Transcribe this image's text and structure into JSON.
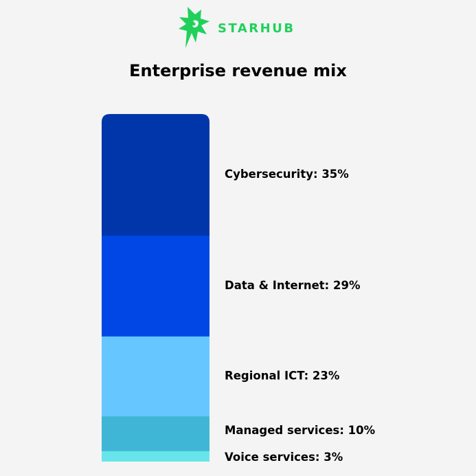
{
  "brand": {
    "name": "STARHUB",
    "logo_icon": "starhub-star-logo",
    "color": "#1fd15a"
  },
  "chart_data": {
    "type": "bar",
    "stacked": true,
    "title": "Enterprise revenue mix",
    "unit": "%",
    "categories": [
      "Cybersecurity",
      "Data & Internet",
      "Regional ICT",
      "Managed services",
      "Voice services"
    ],
    "values": [
      35,
      29,
      23,
      10,
      3
    ],
    "labels": [
      "Cybersecurity: 35%",
      "Data & Internet: 29%",
      "Regional ICT: 23%",
      "Managed services: 10%",
      "Voice services: 3%"
    ],
    "colors": [
      "#0036a9",
      "#0047e6",
      "#66c6ff",
      "#40b6d6",
      "#68e5eb"
    ],
    "total": 100
  }
}
